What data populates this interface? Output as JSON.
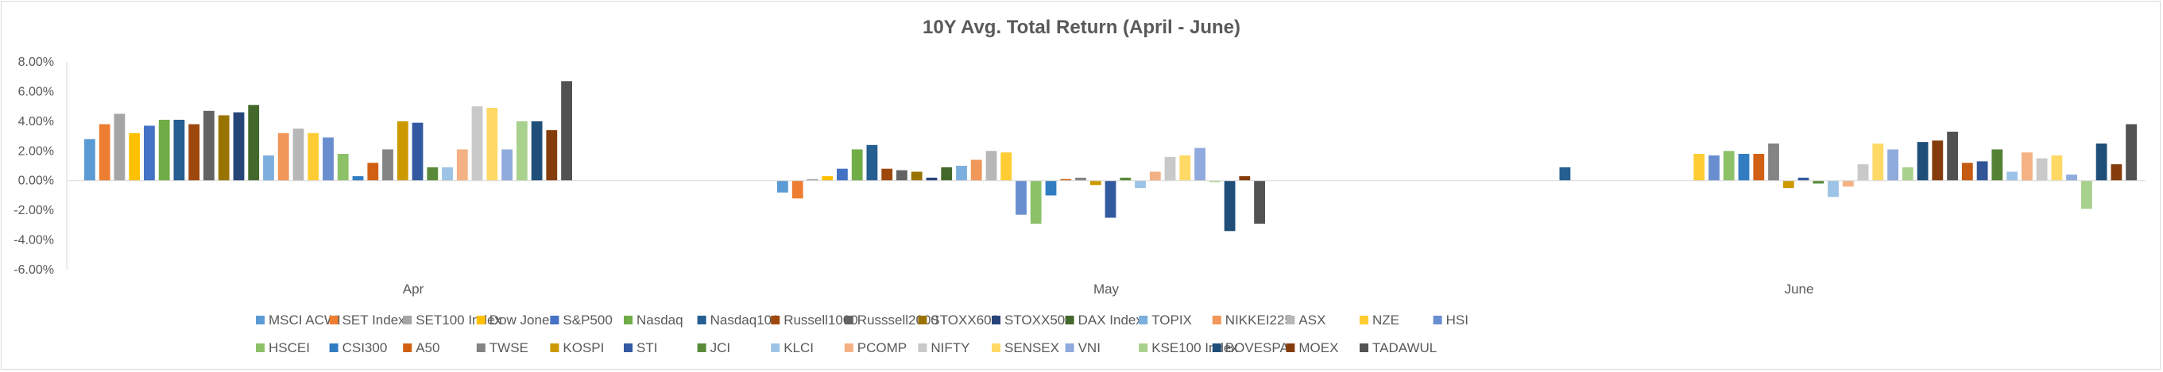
{
  "chart_data": {
    "type": "bar",
    "title": "10Y Avg. Total Return (April - June)",
    "xlabel": "",
    "ylabel": "",
    "categories": [
      "Apr",
      "May",
      "June"
    ],
    "ylim": [
      -6,
      8
    ],
    "yticks": [
      8,
      6,
      4,
      2,
      0,
      -2,
      -4,
      -6
    ],
    "ytick_labels": [
      "8.00%",
      "6.00%",
      "4.00%",
      "2.00%",
      "0.00%",
      "-2.00%",
      "-4.00%",
      "-6.00%"
    ],
    "grid": false,
    "legend_position": "bottom",
    "series": [
      {
        "name": "MSCI ACWI",
        "color": "#5B9BD5",
        "values": [
          2.8,
          -0.8,
          0.0
        ]
      },
      {
        "name": "SET  Index",
        "color": "#ED7D31",
        "values": [
          3.8,
          -1.2,
          0.0
        ]
      },
      {
        "name": "SET100 Index",
        "color": "#A5A5A5",
        "values": [
          4.5,
          0.1,
          0.0
        ]
      },
      {
        "name": "Dow  Jones",
        "color": "#FFC000",
        "values": [
          3.2,
          0.3,
          0.0
        ]
      },
      {
        "name": "S&P500",
        "color": "#4472C4",
        "values": [
          3.7,
          0.8,
          0.0
        ]
      },
      {
        "name": "Nasdaq",
        "color": "#70AD47",
        "values": [
          4.1,
          2.1,
          0.0
        ]
      },
      {
        "name": "Nasdaq100",
        "color": "#255E91",
        "values": [
          4.1,
          2.4,
          0.9
        ]
      },
      {
        "name": "Russell1000",
        "color": "#9E480E",
        "values": [
          3.8,
          0.8,
          0.0
        ]
      },
      {
        "name": "Russsell2000",
        "color": "#636363",
        "values": [
          4.7,
          0.7,
          0.0
        ]
      },
      {
        "name": "STOXX600",
        "color": "#997300",
        "values": [
          4.4,
          0.6,
          0.0
        ]
      },
      {
        "name": "STOXX50",
        "color": "#264478",
        "values": [
          4.6,
          0.2,
          0.0
        ]
      },
      {
        "name": "DAX Index",
        "color": "#43682B",
        "values": [
          5.1,
          0.9,
          0.0
        ]
      },
      {
        "name": "TOPIX",
        "color": "#7CAFDD",
        "values": [
          1.7,
          1.0,
          0.0
        ]
      },
      {
        "name": "NIKKEI225",
        "color": "#F1975A",
        "values": [
          3.2,
          1.4,
          0.0
        ]
      },
      {
        "name": "ASX",
        "color": "#B7B7B7",
        "values": [
          3.5,
          2.0,
          0.0
        ]
      },
      {
        "name": "NZE",
        "color": "#FFCD33",
        "values": [
          3.2,
          1.9,
          1.8
        ]
      },
      {
        "name": "HSI",
        "color": "#698ED0",
        "values": [
          2.9,
          -2.3,
          1.7
        ]
      },
      {
        "name": "HSCEI",
        "color": "#8CC168",
        "values": [
          1.8,
          -2.9,
          2.0
        ]
      },
      {
        "name": "CSI300",
        "color": "#327DC2",
        "values": [
          0.3,
          -1.0,
          1.8
        ]
      },
      {
        "name": "A50",
        "color": "#D26012",
        "values": [
          1.2,
          0.1,
          1.8
        ]
      },
      {
        "name": "TWSE",
        "color": "#848484",
        "values": [
          2.1,
          0.2,
          2.5
        ]
      },
      {
        "name": "KOSPI",
        "color": "#CC9A00",
        "values": [
          4.0,
          -0.3,
          -0.5
        ]
      },
      {
        "name": "STI",
        "color": "#335AA1",
        "values": [
          3.9,
          -2.5,
          0.2
        ]
      },
      {
        "name": "JCI",
        "color": "#5A8A39",
        "values": [
          0.9,
          0.2,
          -0.2
        ]
      },
      {
        "name": "KLCI",
        "color": "#9DC3E6",
        "values": [
          0.9,
          -0.5,
          -1.1
        ]
      },
      {
        "name": "PCOMP",
        "color": "#F4B183",
        "values": [
          2.1,
          0.6,
          -0.4
        ]
      },
      {
        "name": "NIFTY",
        "color": "#C9C9C9",
        "values": [
          5.0,
          1.6,
          1.1
        ]
      },
      {
        "name": "SENSEX",
        "color": "#FFD966",
        "values": [
          4.9,
          1.7,
          2.5
        ]
      },
      {
        "name": "VNI",
        "color": "#8FAADC",
        "values": [
          2.1,
          2.2,
          2.1
        ]
      },
      {
        "name": "KSE100 Index",
        "color": "#A9D18E",
        "values": [
          4.0,
          -0.1,
          0.9
        ]
      },
      {
        "name": "BOVESPA",
        "color": "#1F4E79",
        "values": [
          4.0,
          -3.4,
          2.6
        ]
      },
      {
        "name": "MOEX",
        "color": "#843C0C",
        "values": [
          3.4,
          0.3,
          2.7
        ]
      },
      {
        "name": "TADAWUL",
        "color": "#525252",
        "values": [
          6.7,
          -2.9,
          3.3
        ]
      }
    ],
    "extra_june_bars": [
      {
        "color": "#C55A11",
        "value": 1.2
      },
      {
        "color": "#2F5597",
        "value": 1.3
      },
      {
        "color": "#548235",
        "value": 2.1
      },
      {
        "color": "#9DC3E6",
        "value": 0.6
      },
      {
        "color": "#F4B183",
        "value": 1.9
      },
      {
        "color": "#C9C9C9",
        "value": 1.5
      },
      {
        "color": "#FFD966",
        "value": 1.7
      },
      {
        "color": "#8FAADC",
        "value": 0.4
      },
      {
        "color": "#A9D18E",
        "value": -1.9
      },
      {
        "color": "#1F4E79",
        "value": 2.5
      },
      {
        "color": "#843C0C",
        "value": 1.1
      },
      {
        "color": "#525252",
        "value": 3.8
      }
    ]
  }
}
